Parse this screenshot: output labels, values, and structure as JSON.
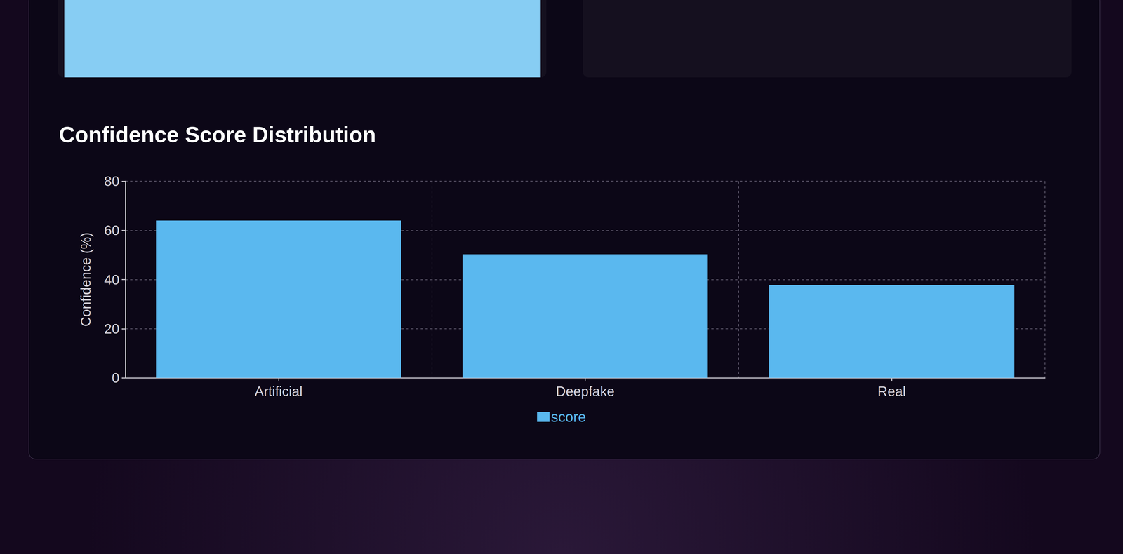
{
  "chart_data": {
    "type": "bar",
    "title": "Confidence Score Distribution",
    "y_label": "Confidence (%)",
    "categories": [
      "Artificial",
      "Deepfake",
      "Real"
    ],
    "series": [
      {
        "name": "score",
        "color": "#5ab8ef",
        "values": [
          64,
          50.3,
          37.8
        ]
      }
    ],
    "ylim": [
      0,
      80
    ],
    "yticks": [
      0,
      20,
      40,
      60,
      80
    ],
    "grid": true,
    "legend": "bottom"
  }
}
